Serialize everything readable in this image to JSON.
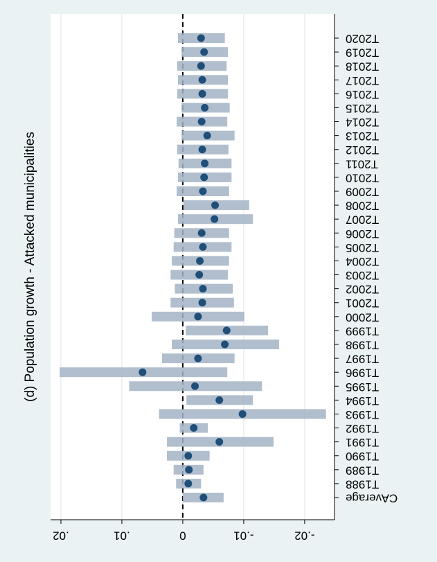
{
  "chart_data": {
    "type": "coefplot",
    "title": "(d) Population growth - Attacked municipalities",
    "categories": [
      "CAverage",
      "T1988",
      "T1989",
      "T1990",
      "T1991",
      "T1992",
      "T1993",
      "T1994",
      "T1995",
      "T1996",
      "T1997",
      "T1998",
      "T1999",
      "T2000",
      "T2001",
      "T2002",
      "T2003",
      "T2004",
      "T2005",
      "T2006",
      "T2007",
      "T2008",
      "T2009",
      "T2010",
      "T2011",
      "T2012",
      "T2013",
      "T2014",
      "T2015",
      "T2016",
      "T2017",
      "T2018",
      "T2019",
      "T2020"
    ],
    "series": [
      {
        "name": "estimate",
        "color": "#1f4e79",
        "values": [
          -0.0034,
          -0.0009,
          -0.001,
          -0.0009,
          -0.006,
          -0.0018,
          -0.0098,
          -0.006,
          -0.002,
          0.0066,
          -0.0025,
          -0.0069,
          -0.0072,
          -0.0025,
          -0.0032,
          -0.0033,
          -0.0027,
          -0.0028,
          -0.0033,
          -0.0031,
          -0.0052,
          -0.0053,
          -0.0033,
          -0.0035,
          -0.0036,
          -0.0032,
          -0.004,
          -0.0031,
          -0.0036,
          -0.0032,
          -0.0032,
          -0.003,
          -0.0035,
          -0.003
        ]
      },
      {
        "name": "ci_upper",
        "color": "#a3b3c4",
        "values": [
          0.0,
          0.0011,
          0.0015,
          0.0026,
          0.0026,
          0.0005,
          0.0039,
          -0.0006,
          0.0088,
          0.0202,
          0.0034,
          0.0018,
          -0.0005,
          0.0051,
          0.002,
          0.0013,
          0.002,
          0.0018,
          0.0015,
          0.0014,
          0.0008,
          -0.0001,
          0.001,
          0.0008,
          0.0007,
          0.0009,
          0.0002,
          0.001,
          0.0002,
          0.0009,
          0.0008,
          0.0009,
          0.0002,
          0.0008
        ]
      },
      {
        "name": "ci_lower",
        "color": "#a3b3c4",
        "values": [
          -0.0067,
          -0.003,
          -0.0034,
          -0.0044,
          -0.0149,
          -0.0041,
          -0.0235,
          -0.0115,
          -0.013,
          -0.0073,
          -0.0085,
          -0.0158,
          -0.014,
          -0.0101,
          -0.0084,
          -0.0082,
          -0.0074,
          -0.0076,
          -0.008,
          -0.0076,
          -0.0115,
          -0.0109,
          -0.0076,
          -0.008,
          -0.008,
          -0.0075,
          -0.0085,
          -0.0073,
          -0.0077,
          -0.0074,
          -0.0074,
          -0.0072,
          -0.0074,
          -0.0069
        ]
      }
    ],
    "xlim": [
      0.0217,
      -0.0249
    ],
    "xticks": [
      {
        "value": 0.02,
        "label": ".02"
      },
      {
        "value": 0.01,
        "label": ".01"
      },
      0,
      {
        "value": -0.01,
        "label": "-.01"
      },
      {
        "value": -0.02,
        "label": "-.02"
      }
    ],
    "refline": 0,
    "grid": true
  }
}
